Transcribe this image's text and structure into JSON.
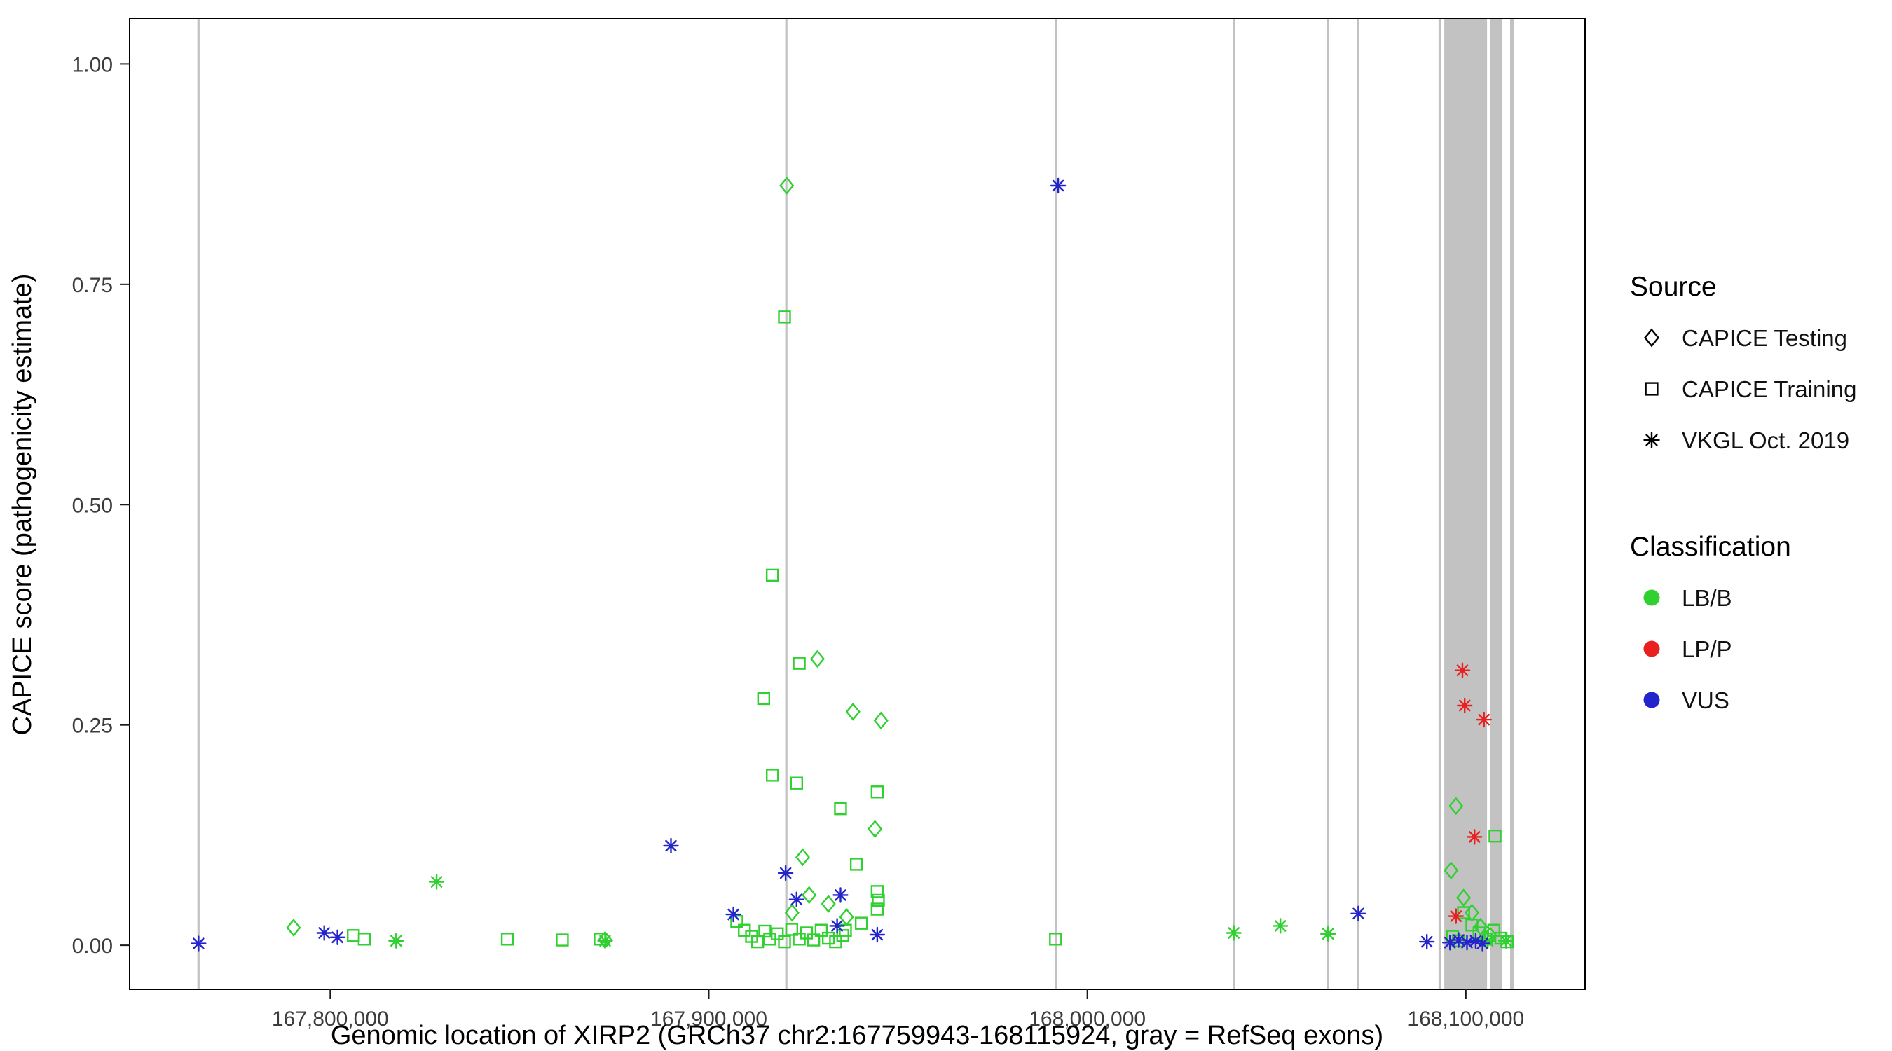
{
  "chart_data": {
    "type": "scatter",
    "title": "",
    "xlabel": "Genomic location of XIRP2 (GRCh37 chr2:167759943-168115924, gray = RefSeq exons)",
    "ylabel": "CAPICE score (pathogenicity estimate)",
    "xlim": [
      167747000,
      168131500
    ],
    "ylim": [
      -0.05,
      1.052
    ],
    "grid": false,
    "legend_position": "right",
    "x_ticks": [
      {
        "value": 167800000,
        "label": "167,800,000"
      },
      {
        "value": 167900000,
        "label": "167,900,000"
      },
      {
        "value": 168000000,
        "label": "168,000,000"
      },
      {
        "value": 168100000,
        "label": "168,100,000"
      }
    ],
    "y_ticks": [
      {
        "value": 0.0,
        "label": "0.00"
      },
      {
        "value": 0.25,
        "label": "0.25"
      },
      {
        "value": 0.5,
        "label": "0.50"
      },
      {
        "value": 0.75,
        "label": "0.75"
      },
      {
        "value": 1.0,
        "label": "1.00"
      }
    ],
    "colors": {
      "LB/B": "#2fd02f",
      "LP/P": "#ea2020",
      "VUS": "#2424cc"
    },
    "exon_color": "#c2c2c2",
    "exons": [
      [
        167764900,
        167765500
      ],
      [
        167920200,
        167920800
      ],
      [
        167991500,
        167992100
      ],
      [
        168038400,
        168039000
      ],
      [
        168063300,
        168063900
      ],
      [
        168071300,
        168071900
      ],
      [
        168092800,
        168093400
      ],
      [
        168094300,
        168105600
      ],
      [
        168106400,
        168109600
      ],
      [
        168111700,
        168112700
      ]
    ],
    "legend": {
      "source": {
        "title": "Source",
        "items": [
          {
            "shape": "diamond",
            "label": "CAPICE Testing"
          },
          {
            "shape": "square",
            "label": "CAPICE Training"
          },
          {
            "shape": "asterisk",
            "label": "VKGL Oct. 2019"
          }
        ]
      },
      "classification": {
        "title": "Classification",
        "items": [
          {
            "label": "LB/B"
          },
          {
            "label": "LP/P"
          },
          {
            "label": "VUS"
          }
        ]
      }
    },
    "points_schema": [
      "x",
      "y",
      "shape",
      "classification"
    ],
    "points": [
      [
        167920600,
        0.862,
        "diamond",
        "LB/B"
      ],
      [
        167928700,
        0.325,
        "diamond",
        "LB/B"
      ],
      [
        167938100,
        0.265,
        "diamond",
        "LB/B"
      ],
      [
        167945500,
        0.255,
        "diamond",
        "LB/B"
      ],
      [
        167943900,
        0.132,
        "diamond",
        "LB/B"
      ],
      [
        167924800,
        0.1,
        "diamond",
        "LB/B"
      ],
      [
        167926500,
        0.057,
        "diamond",
        "LB/B"
      ],
      [
        167931600,
        0.047,
        "diamond",
        "LB/B"
      ],
      [
        167922000,
        0.037,
        "diamond",
        "LB/B"
      ],
      [
        167936400,
        0.032,
        "diamond",
        "LB/B"
      ],
      [
        167790300,
        0.02,
        "diamond",
        "LB/B"
      ],
      [
        167872600,
        0.006,
        "diamond",
        "LB/B"
      ],
      [
        168097400,
        0.158,
        "diamond",
        "LB/B"
      ],
      [
        168096100,
        0.085,
        "diamond",
        "LB/B"
      ],
      [
        168099400,
        0.054,
        "diamond",
        "LB/B"
      ],
      [
        168101600,
        0.037,
        "diamond",
        "LB/B"
      ],
      [
        168103900,
        0.021,
        "diamond",
        "LB/B"
      ],
      [
        168106400,
        0.011,
        "diamond",
        "LB/B"
      ],
      [
        167920000,
        0.713,
        "square",
        "LB/B"
      ],
      [
        167916800,
        0.42,
        "square",
        "LB/B"
      ],
      [
        167923900,
        0.32,
        "square",
        "LB/B"
      ],
      [
        167914500,
        0.28,
        "square",
        "LB/B"
      ],
      [
        167916800,
        0.193,
        "square",
        "LB/B"
      ],
      [
        167923200,
        0.184,
        "square",
        "LB/B"
      ],
      [
        167944500,
        0.174,
        "square",
        "LB/B"
      ],
      [
        167934800,
        0.155,
        "square",
        "LB/B"
      ],
      [
        167939000,
        0.092,
        "square",
        "LB/B"
      ],
      [
        167944500,
        0.061,
        "square",
        "LB/B"
      ],
      [
        167944800,
        0.051,
        "square",
        "LB/B"
      ],
      [
        167944500,
        0.041,
        "square",
        "LB/B"
      ],
      [
        167940300,
        0.025,
        "square",
        "LB/B"
      ],
      [
        167936100,
        0.017,
        "square",
        "LB/B"
      ],
      [
        167907400,
        0.027,
        "square",
        "LB/B"
      ],
      [
        167909400,
        0.017,
        "square",
        "LB/B"
      ],
      [
        167911300,
        0.01,
        "square",
        "LB/B"
      ],
      [
        167912900,
        0.004,
        "square",
        "LB/B"
      ],
      [
        167914800,
        0.016,
        "square",
        "LB/B"
      ],
      [
        167916100,
        0.007,
        "square",
        "LB/B"
      ],
      [
        167918100,
        0.013,
        "square",
        "LB/B"
      ],
      [
        167920000,
        0.004,
        "square",
        "LB/B"
      ],
      [
        167921900,
        0.018,
        "square",
        "LB/B"
      ],
      [
        167923900,
        0.007,
        "square",
        "LB/B"
      ],
      [
        167925800,
        0.014,
        "square",
        "LB/B"
      ],
      [
        167927700,
        0.006,
        "square",
        "LB/B"
      ],
      [
        167929700,
        0.017,
        "square",
        "LB/B"
      ],
      [
        167931600,
        0.008,
        "square",
        "LB/B"
      ],
      [
        167933500,
        0.004,
        "square",
        "LB/B"
      ],
      [
        167935400,
        0.011,
        "square",
        "LB/B"
      ],
      [
        167806100,
        0.011,
        "square",
        "LB/B"
      ],
      [
        167809000,
        0.007,
        "square",
        "LB/B"
      ],
      [
        167846800,
        0.007,
        "square",
        "LB/B"
      ],
      [
        167861300,
        0.006,
        "square",
        "LB/B"
      ],
      [
        167871300,
        0.007,
        "square",
        "LB/B"
      ],
      [
        167991600,
        0.007,
        "square",
        "LB/B"
      ],
      [
        168107700,
        0.124,
        "square",
        "LB/B"
      ],
      [
        168099400,
        0.037,
        "square",
        "LB/B"
      ],
      [
        168101600,
        0.023,
        "square",
        "LB/B"
      ],
      [
        168103500,
        0.014,
        "square",
        "LB/B"
      ],
      [
        168105400,
        0.007,
        "square",
        "LB/B"
      ],
      [
        168107400,
        0.017,
        "square",
        "LB/B"
      ],
      [
        168109300,
        0.008,
        "square",
        "LB/B"
      ],
      [
        168110900,
        0.004,
        "square",
        "LB/B"
      ],
      [
        168096500,
        0.01,
        "square",
        "LB/B"
      ],
      [
        168098000,
        0.005,
        "square",
        "LB/B"
      ],
      [
        167828100,
        0.072,
        "asterisk",
        "LB/B"
      ],
      [
        167817400,
        0.005,
        "asterisk",
        "LB/B"
      ],
      [
        167872600,
        0.005,
        "asterisk",
        "LB/B"
      ],
      [
        168038700,
        0.014,
        "asterisk",
        "LB/B"
      ],
      [
        168051000,
        0.022,
        "asterisk",
        "LB/B"
      ],
      [
        168063600,
        0.013,
        "asterisk",
        "LB/B"
      ],
      [
        168105800,
        0.005,
        "asterisk",
        "LB/B"
      ],
      [
        168110600,
        0.005,
        "asterisk",
        "LB/B"
      ],
      [
        167765200,
        0.002,
        "asterisk",
        "VUS"
      ],
      [
        167798400,
        0.014,
        "asterisk",
        "VUS"
      ],
      [
        167801900,
        0.009,
        "asterisk",
        "VUS"
      ],
      [
        167890000,
        0.113,
        "asterisk",
        "VUS"
      ],
      [
        167906500,
        0.035,
        "asterisk",
        "VUS"
      ],
      [
        167920300,
        0.082,
        "asterisk",
        "VUS"
      ],
      [
        167923200,
        0.052,
        "asterisk",
        "VUS"
      ],
      [
        167934800,
        0.057,
        "asterisk",
        "VUS"
      ],
      [
        167933900,
        0.022,
        "asterisk",
        "VUS"
      ],
      [
        167944500,
        0.012,
        "asterisk",
        "VUS"
      ],
      [
        167992300,
        0.862,
        "asterisk",
        "VUS"
      ],
      [
        168071600,
        0.036,
        "asterisk",
        "VUS"
      ],
      [
        168089700,
        0.004,
        "asterisk",
        "VUS"
      ],
      [
        168095800,
        0.003,
        "asterisk",
        "VUS"
      ],
      [
        168098100,
        0.006,
        "asterisk",
        "VUS"
      ],
      [
        168100300,
        0.003,
        "asterisk",
        "VUS"
      ],
      [
        168102600,
        0.005,
        "asterisk",
        "VUS"
      ],
      [
        168104400,
        0.002,
        "asterisk",
        "VUS"
      ],
      [
        168099100,
        0.312,
        "asterisk",
        "LP/P"
      ],
      [
        168099700,
        0.272,
        "asterisk",
        "LP/P"
      ],
      [
        168104800,
        0.256,
        "asterisk",
        "LP/P"
      ],
      [
        168102300,
        0.123,
        "asterisk",
        "LP/P"
      ],
      [
        168097400,
        0.033,
        "asterisk",
        "LP/P"
      ]
    ]
  }
}
